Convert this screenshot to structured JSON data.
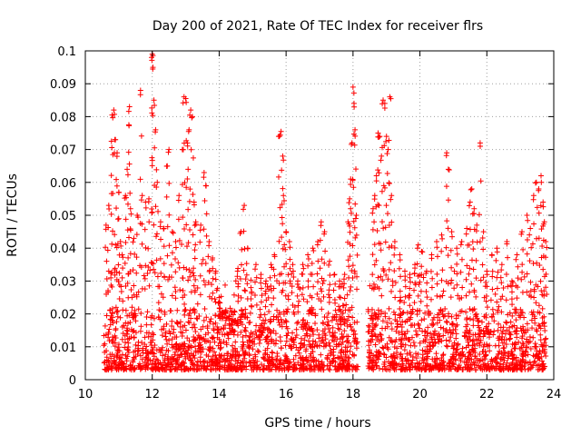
{
  "chart_data": {
    "type": "scatter",
    "title": "Day 200 of 2021, Rate Of TEC Index for receiver flrs",
    "xlabel": "GPS time / hours",
    "ylabel": "ROTI / TECUs",
    "xlim": [
      10,
      24
    ],
    "ylim": [
      0,
      0.1
    ],
    "xticks": [
      10,
      12,
      14,
      16,
      18,
      20,
      22,
      24
    ],
    "xtick_labels": [
      "10",
      "12",
      "14",
      "16",
      "18",
      "20",
      "22",
      "24"
    ],
    "yticks": [
      0,
      0.01,
      0.02,
      0.03,
      0.04,
      0.05,
      0.06,
      0.07,
      0.08,
      0.09,
      0.1
    ],
    "ytick_labels": [
      "0",
      "0.01",
      "0.02",
      "0.03",
      "0.04",
      "0.05",
      "0.06",
      "0.07",
      "0.08",
      "0.09",
      "0.1"
    ],
    "grid": true,
    "marker": "+",
    "color": "#ff0000",
    "series": [
      {
        "points": [
          [
            10.62,
            0.047
          ],
          [
            10.7,
            0.053
          ],
          [
            10.78,
            0.0725
          ],
          [
            10.8,
            0.0805
          ],
          [
            10.85,
            0.082
          ],
          [
            10.9,
            0.073
          ],
          [
            10.95,
            0.069
          ],
          [
            11.0,
            0.057
          ],
          [
            11.05,
            0.042
          ],
          [
            11.1,
            0.038
          ],
          [
            11.2,
            0.056
          ],
          [
            11.25,
            0.064
          ],
          [
            11.3,
            0.0775
          ],
          [
            11.32,
            0.083
          ],
          [
            11.35,
            0.052
          ],
          [
            11.45,
            0.043
          ],
          [
            11.55,
            0.05
          ],
          [
            11.65,
            0.088
          ],
          [
            11.7,
            0.056
          ],
          [
            11.8,
            0.054
          ],
          [
            11.9,
            0.055
          ],
          [
            11.98,
            0.098
          ],
          [
            12.0,
            0.099
          ],
          [
            12.02,
            0.095
          ],
          [
            12.05,
            0.085
          ],
          [
            12.1,
            0.076
          ],
          [
            12.15,
            0.06
          ],
          [
            12.25,
            0.048
          ],
          [
            12.35,
            0.046
          ],
          [
            12.45,
            0.065
          ],
          [
            12.5,
            0.07
          ],
          [
            12.6,
            0.045
          ],
          [
            12.7,
            0.042
          ],
          [
            12.8,
            0.056
          ],
          [
            12.9,
            0.07
          ],
          [
            12.95,
            0.086
          ],
          [
            13.0,
            0.0855
          ],
          [
            13.05,
            0.072
          ],
          [
            13.1,
            0.076
          ],
          [
            13.15,
            0.082
          ],
          [
            13.2,
            0.08
          ],
          [
            13.25,
            0.054
          ],
          [
            13.3,
            0.048
          ],
          [
            13.45,
            0.047
          ],
          [
            13.55,
            0.063
          ],
          [
            13.6,
            0.059
          ],
          [
            13.7,
            0.042
          ],
          [
            13.8,
            0.037
          ],
          [
            13.9,
            0.033
          ],
          [
            14.0,
            0.025
          ],
          [
            14.1,
            0.02
          ],
          [
            14.2,
            0.018
          ],
          [
            14.3,
            0.017
          ],
          [
            14.4,
            0.018
          ],
          [
            14.55,
            0.033
          ],
          [
            14.65,
            0.045
          ],
          [
            14.75,
            0.053
          ],
          [
            14.85,
            0.04
          ],
          [
            14.95,
            0.028
          ],
          [
            15.1,
            0.035
          ],
          [
            15.25,
            0.032
          ],
          [
            15.4,
            0.03
          ],
          [
            15.55,
            0.035
          ],
          [
            15.65,
            0.038
          ],
          [
            15.8,
            0.074
          ],
          [
            15.85,
            0.0755
          ],
          [
            15.9,
            0.068
          ],
          [
            15.92,
            0.056
          ],
          [
            16.0,
            0.045
          ],
          [
            16.1,
            0.042
          ],
          [
            16.2,
            0.035
          ],
          [
            16.35,
            0.03
          ],
          [
            16.5,
            0.035
          ],
          [
            16.65,
            0.038
          ],
          [
            16.8,
            0.04
          ],
          [
            16.95,
            0.042
          ],
          [
            17.05,
            0.048
          ],
          [
            17.15,
            0.045
          ],
          [
            17.3,
            0.036
          ],
          [
            17.45,
            0.032
          ],
          [
            17.6,
            0.03
          ],
          [
            17.75,
            0.032
          ],
          [
            17.85,
            0.048
          ],
          [
            17.9,
            0.055
          ],
          [
            17.93,
            0.061
          ],
          [
            17.97,
            0.072
          ],
          [
            18.0,
            0.089
          ],
          [
            18.03,
            0.084
          ],
          [
            18.06,
            0.076
          ],
          [
            18.1,
            0.05
          ],
          [
            18.6,
            0.052
          ],
          [
            18.65,
            0.056
          ],
          [
            18.7,
            0.062
          ],
          [
            18.75,
            0.075
          ],
          [
            18.8,
            0.074
          ],
          [
            18.85,
            0.068
          ],
          [
            18.9,
            0.085
          ],
          [
            18.95,
            0.084
          ],
          [
            19.0,
            0.074
          ],
          [
            19.05,
            0.07
          ],
          [
            19.1,
            0.086
          ],
          [
            19.15,
            0.056
          ],
          [
            19.25,
            0.042
          ],
          [
            19.4,
            0.038
          ],
          [
            19.55,
            0.033
          ],
          [
            19.7,
            0.031
          ],
          [
            19.85,
            0.035
          ],
          [
            19.95,
            0.041
          ],
          [
            20.05,
            0.039
          ],
          [
            20.2,
            0.033
          ],
          [
            20.35,
            0.038
          ],
          [
            20.5,
            0.042
          ],
          [
            20.65,
            0.044
          ],
          [
            20.8,
            0.069
          ],
          [
            20.85,
            0.064
          ],
          [
            20.95,
            0.045
          ],
          [
            21.1,
            0.04
          ],
          [
            21.25,
            0.042
          ],
          [
            21.4,
            0.046
          ],
          [
            21.5,
            0.054
          ],
          [
            21.55,
            0.058
          ],
          [
            21.62,
            0.052
          ],
          [
            21.7,
            0.047
          ],
          [
            21.8,
            0.072
          ],
          [
            21.9,
            0.045
          ],
          [
            22.0,
            0.033
          ],
          [
            22.15,
            0.038
          ],
          [
            22.3,
            0.04
          ],
          [
            22.45,
            0.035
          ],
          [
            22.6,
            0.042
          ],
          [
            22.75,
            0.03
          ],
          [
            22.9,
            0.038
          ],
          [
            23.05,
            0.045
          ],
          [
            23.2,
            0.05
          ],
          [
            23.3,
            0.046
          ],
          [
            23.4,
            0.056
          ],
          [
            23.48,
            0.06
          ],
          [
            23.55,
            0.058
          ],
          [
            23.62,
            0.062
          ],
          [
            23.68,
            0.054
          ],
          [
            23.72,
            0.048
          ],
          [
            23.76,
            0.042
          ]
        ]
      }
    ],
    "density_band": {
      "description_free": true,
      "segments": [
        [
          10.55,
          18.15
        ],
        [
          18.45,
          23.78
        ]
      ],
      "baseline_min": 0.003,
      "baseline_max": 0.022
    }
  }
}
